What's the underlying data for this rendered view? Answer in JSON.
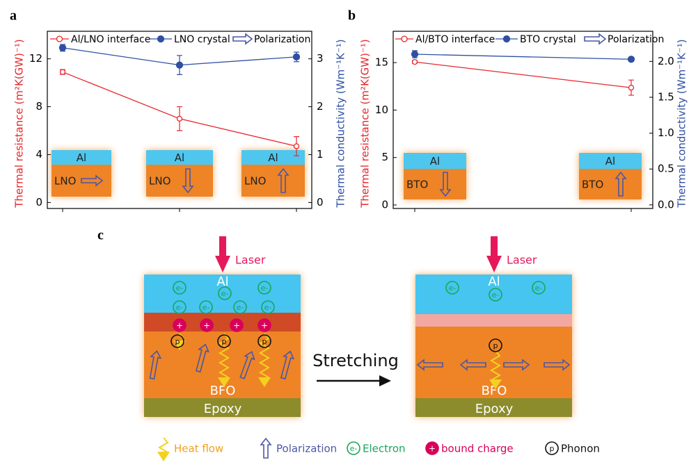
{
  "chart_data": [
    {
      "type": "line",
      "panel": "a",
      "categories": [
        null,
        null,
        null
      ],
      "ylabel": "Thermal resistance (m²K(GW)⁻¹)",
      "y2label": "Thermal conductivity (Wm⁻¹K⁻¹)",
      "ylim": [
        -0.5,
        14.3
      ],
      "yticks": [
        0,
        4,
        8,
        12
      ],
      "y2lim": [
        -0.125,
        3.575
      ],
      "y2ticks": [
        0,
        1,
        2,
        3
      ],
      "series": [
        {
          "name": "Al/LNO interface",
          "color": "#e8262b",
          "values": [
            10.9,
            7.0,
            4.7
          ],
          "errors": [
            0.2,
            1.0,
            0.8
          ]
        },
        {
          "name": "LNO crystal",
          "color": "#2f4fa3",
          "axis": "y2",
          "values": [
            3.23,
            2.87,
            3.04
          ],
          "errors": [
            0.07,
            0.2,
            0.1
          ]
        }
      ],
      "legend_extra": "Polarization",
      "insets": [
        {
          "top": "Al",
          "bottom": "LNO"
        },
        {
          "top": "Al",
          "bottom": "LNO"
        },
        {
          "top": "Al",
          "bottom": "LNO"
        }
      ]
    },
    {
      "type": "line",
      "panel": "b",
      "categories": [
        null,
        null
      ],
      "ylabel": "Thermal resistance (m²K(GW)⁻¹)",
      "y2label": "Thermal conductivity (Wm⁻¹K⁻¹)",
      "ylim": [
        -0.37,
        18.3
      ],
      "yticks": [
        0,
        5,
        10,
        15
      ],
      "y2lim": [
        -0.05,
        2.42
      ],
      "y2ticks": [
        {
          "value": 0,
          "label": "0.0"
        },
        0.5,
        {
          "value": 1,
          "label": "1.0"
        },
        1.5,
        {
          "value": 2,
          "label": "2.0"
        }
      ],
      "series": [
        {
          "name": "Al/BTO interface",
          "color": "#e8262b",
          "values": [
            15.07,
            12.36
          ],
          "errors": [
            0.15,
            0.8
          ]
        },
        {
          "name": "BTO crystal",
          "color": "#2f4fa3",
          "axis": "y2",
          "values": [
            2.1,
            2.03
          ],
          "errors": [
            0.05,
            0.02
          ]
        }
      ],
      "legend_extra": "Polarization",
      "insets": [
        {
          "top": "Al",
          "bottom": "BTO"
        },
        {
          "top": "Al",
          "bottom": "BTO"
        }
      ]
    }
  ],
  "diagram": {
    "panel": "c",
    "laser": "Laser",
    "al": "Al",
    "bfo": "BFO",
    "epoxy": "Epoxy",
    "action": "Stretching",
    "symbols": {
      "electron": "e-",
      "charge": "+",
      "phonon": "p"
    },
    "legend": {
      "heat": "Heat flow",
      "polarization": "Polarization",
      "electron": "Electron",
      "charge": "bound charge",
      "phonon": "Phonon"
    }
  }
}
